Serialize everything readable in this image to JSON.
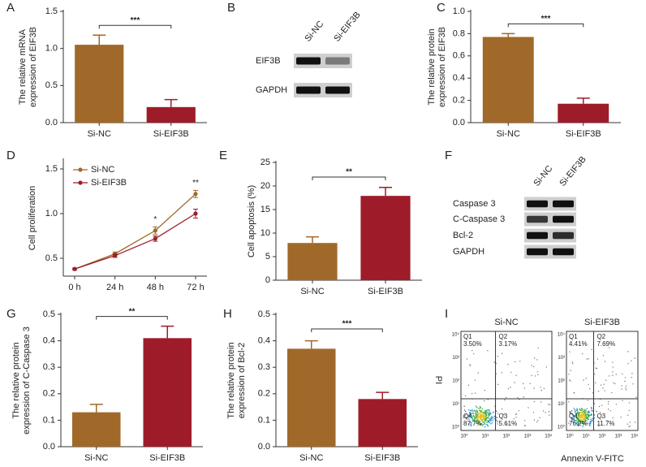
{
  "chart_data": [
    {
      "type": "bar",
      "label": "A",
      "ylabel": [
        "The relative mRNA",
        "expression of EIF3B"
      ],
      "categories": [
        "Si-NC",
        "Si-EIF3B"
      ],
      "values": [
        1.05,
        0.21
      ],
      "errors": [
        0.13,
        0.1
      ],
      "colors": [
        "#a0692a",
        "#9e1c2a"
      ],
      "ylim": [
        0,
        1.5
      ],
      "yticks": [
        {
          "value": 0,
          "label": "0.0"
        },
        0.5,
        {
          "value": 1,
          "label": "1.0"
        },
        1.5
      ],
      "significance": "***"
    },
    {
      "type": "bar",
      "label": "C",
      "ylabel": [
        "The relative protein",
        "expression of EIF3B"
      ],
      "categories": [
        "Si-NC",
        "Si-EIF3B"
      ],
      "values": [
        0.77,
        0.17
      ],
      "errors": [
        0.03,
        0.05
      ],
      "colors": [
        "#a0692a",
        "#9e1c2a"
      ],
      "ylim": [
        0,
        1
      ],
      "yticks": [
        {
          "value": 0,
          "label": "0.0"
        },
        0.2,
        0.4,
        0.6,
        0.8,
        {
          "value": 1,
          "label": "1.0"
        }
      ],
      "significance": "***"
    },
    {
      "type": "line",
      "label": "D",
      "ylabel": [
        "Cell proliferation"
      ],
      "categories": [
        "0 h",
        "24 h",
        "48 h",
        "72 h"
      ],
      "series": [
        {
          "name": "Si-NC",
          "color": "#a0692a",
          "values": [
            0.38,
            0.55,
            0.81,
            1.22
          ],
          "errors": [
            0.01,
            0.02,
            0.04,
            0.04
          ]
        },
        {
          "name": "Si-EIF3B",
          "color": "#9e1c2a",
          "values": [
            0.38,
            0.53,
            0.72,
            1.0
          ],
          "errors": [
            0.01,
            0.02,
            0.03,
            0.05
          ]
        }
      ],
      "ylim": [
        0.3,
        1.6
      ],
      "yticks": [
        0.5,
        {
          "value": 1,
          "label": "1.0"
        },
        1.5
      ],
      "significance": [
        null,
        null,
        "*",
        "**"
      ]
    },
    {
      "type": "bar",
      "label": "E",
      "ylabel": [
        "Cell apoptosis (%)"
      ],
      "categories": [
        "Si-NC",
        "Si-EIF3B"
      ],
      "values": [
        7.9,
        17.9
      ],
      "errors": [
        1.3,
        1.8
      ],
      "colors": [
        "#a0692a",
        "#9e1c2a"
      ],
      "ylim": [
        0,
        25
      ],
      "yticks": [
        0,
        5,
        10,
        15,
        20,
        25
      ],
      "significance": "**"
    },
    {
      "type": "bar",
      "label": "G",
      "ylabel": [
        "The relative protein",
        "expression of C-Caspase 3"
      ],
      "categories": [
        "Si-NC",
        "Si-EIF3B"
      ],
      "values": [
        0.13,
        0.41
      ],
      "errors": [
        0.03,
        0.045
      ],
      "colors": [
        "#a0692a",
        "#9e1c2a"
      ],
      "ylim": [
        0,
        0.5
      ],
      "yticks": [
        {
          "value": 0,
          "label": "0.0"
        },
        0.1,
        0.2,
        0.3,
        0.4,
        0.5
      ],
      "significance": "**"
    },
    {
      "type": "bar",
      "label": "H",
      "ylabel": [
        "The relative protein",
        "expression of Bcl-2"
      ],
      "categories": [
        "Si-NC",
        "Si-EIF3B"
      ],
      "values": [
        0.37,
        0.18
      ],
      "errors": [
        0.03,
        0.025
      ],
      "colors": [
        "#a0692a",
        "#9e1c2a"
      ],
      "ylim": [
        0,
        0.5
      ],
      "yticks": [
        {
          "value": 0,
          "label": "0.0"
        },
        0.1,
        0.2,
        0.3,
        0.4,
        0.5
      ],
      "significance": "***"
    }
  ],
  "blots": [
    {
      "label": "B",
      "lanes": [
        "Si-NC",
        "Si-EIF3B"
      ],
      "rows": [
        "EIF3B",
        "GAPDH"
      ]
    },
    {
      "label": "F",
      "lanes": [
        "Si-NC",
        "Si-EIF3B"
      ],
      "rows": [
        "Caspase 3",
        "C-Caspase 3",
        "Bcl-2",
        "GAPDH"
      ]
    }
  ],
  "flow": {
    "label": "I",
    "ylabel": "PI",
    "xlabel": "Annexin V-FITC",
    "ticks": [
      "10⁰",
      "10¹",
      "10²",
      "10³",
      "10⁴"
    ],
    "samples": [
      {
        "name": "Si-NC",
        "quadrants": [
          {
            "name": "Q1",
            "value": "3.50%"
          },
          {
            "name": "Q2",
            "value": "3.17%"
          },
          {
            "name": "Q3",
            "value": "5.61%"
          },
          {
            "name": "Q4",
            "value": "87.7%"
          }
        ]
      },
      {
        "name": "Si-EIF3B",
        "quadrants": [
          {
            "name": "Q1",
            "value": "4.41%"
          },
          {
            "name": "Q2",
            "value": "7.69%"
          },
          {
            "name": "Q3",
            "value": "11.7%"
          },
          {
            "name": "Q4",
            "value": "76.2%"
          }
        ]
      }
    ]
  }
}
